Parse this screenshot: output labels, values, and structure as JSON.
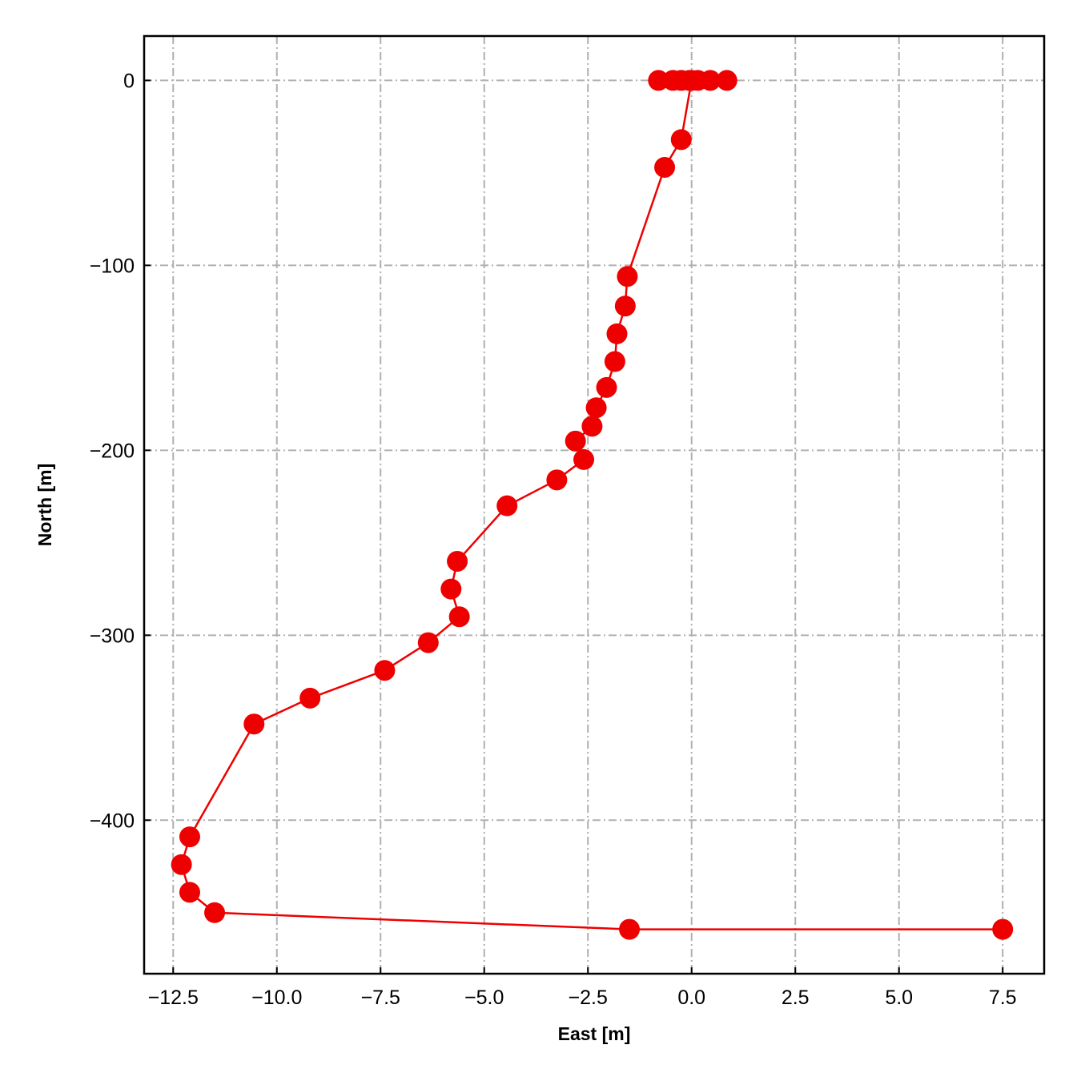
{
  "chart_data": {
    "type": "line",
    "title": "",
    "xlabel": "East [m]",
    "ylabel": "North [m]",
    "xlim": [
      -13.2,
      8.5
    ],
    "ylim": [
      -483,
      24
    ],
    "xticks": [
      -12.5,
      -10.0,
      -7.5,
      -5.0,
      -2.5,
      0.0,
      2.5,
      5.0,
      7.5
    ],
    "xtick_labels": [
      "−12.5",
      "−10.0",
      "−7.5",
      "−5.0",
      "−2.5",
      "0.0",
      "2.5",
      "5.0",
      "7.5"
    ],
    "yticks": [
      0,
      -100,
      -200,
      -300,
      -400
    ],
    "ytick_labels": [
      "0",
      "−100",
      "−200",
      "−300",
      "−400"
    ],
    "grid": true,
    "grid_style": "dashdot",
    "legend": "none",
    "colors": {
      "series": "#ee0000",
      "grid": "#b0b0b0",
      "axes": "#000000"
    },
    "series": [
      {
        "x": [
          0.85,
          0.45,
          0.15,
          -0.05,
          -0.25,
          -0.45,
          -0.8,
          0.0,
          -0.25,
          -0.65,
          -1.55,
          -1.6,
          -1.8,
          -1.85,
          -2.05,
          -2.3,
          -2.4,
          -2.8,
          -2.6,
          -3.25,
          -4.45,
          -5.65,
          -5.8,
          -5.6,
          -6.35,
          -7.4,
          -9.2,
          -10.55,
          -12.1,
          -12.3,
          -12.1,
          -11.5,
          -1.5,
          7.5
        ],
        "y": [
          0,
          0,
          0,
          0,
          0,
          0,
          0,
          0,
          -32,
          -47,
          -106,
          -122,
          -137,
          -152,
          -166,
          -177,
          -187,
          -195,
          -205,
          -216,
          -230,
          -260,
          -275,
          -290,
          -304,
          -319,
          -334,
          -348,
          -409,
          -424,
          -439,
          -450,
          -459,
          -459
        ]
      }
    ]
  }
}
